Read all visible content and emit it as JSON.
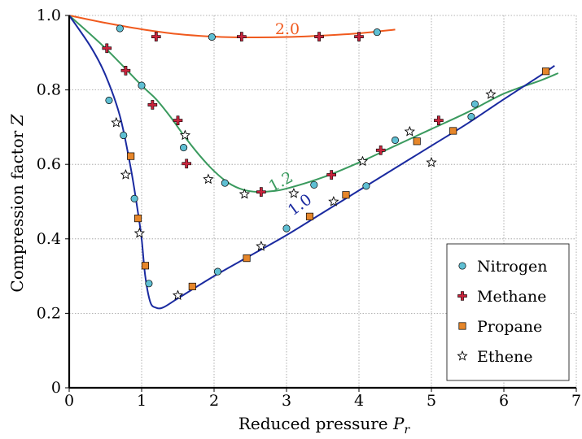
{
  "chart_data": {
    "type": "scatter",
    "xlabel": "Reduced pressure P_r",
    "ylabel": "Compression factor Z",
    "xlim": [
      0,
      7
    ],
    "ylim": [
      0,
      1.0
    ],
    "x_ticks": [
      0,
      1,
      2,
      3,
      4,
      5,
      6,
      7
    ],
    "y_ticks": [
      0,
      0.2,
      0.4,
      0.6,
      0.8,
      1.0
    ],
    "grid": true,
    "legend_position": "bottom-right",
    "curves": [
      {
        "label": "2.0",
        "color": "#f05a1e",
        "points": [
          [
            0,
            1.0
          ],
          [
            0.5,
            0.98
          ],
          [
            1.0,
            0.963
          ],
          [
            1.5,
            0.95
          ],
          [
            2.0,
            0.943
          ],
          [
            2.5,
            0.941
          ],
          [
            3.0,
            0.942
          ],
          [
            3.5,
            0.946
          ],
          [
            4.0,
            0.952
          ],
          [
            4.5,
            0.962
          ]
        ]
      },
      {
        "label": "1.2",
        "color": "#3a9a5e",
        "points": [
          [
            0,
            1.0
          ],
          [
            0.5,
            0.912
          ],
          [
            1.0,
            0.812
          ],
          [
            1.2,
            0.775
          ],
          [
            1.4,
            0.727
          ],
          [
            1.6,
            0.673
          ],
          [
            1.8,
            0.624
          ],
          [
            2.0,
            0.582
          ],
          [
            2.2,
            0.55
          ],
          [
            2.4,
            0.532
          ],
          [
            2.6,
            0.526
          ],
          [
            2.8,
            0.528
          ],
          [
            3.0,
            0.535
          ],
          [
            3.5,
            0.565
          ],
          [
            4.0,
            0.605
          ],
          [
            4.5,
            0.65
          ],
          [
            5.0,
            0.695
          ],
          [
            5.5,
            0.74
          ],
          [
            6.0,
            0.79
          ],
          [
            6.5,
            0.825
          ],
          [
            6.75,
            0.845
          ]
        ]
      },
      {
        "label": "1.0",
        "color": "#1a2aa0",
        "points": [
          [
            0,
            1.0
          ],
          [
            0.3,
            0.915
          ],
          [
            0.5,
            0.84
          ],
          [
            0.7,
            0.73
          ],
          [
            0.85,
            0.59
          ],
          [
            0.95,
            0.47
          ],
          [
            1.0,
            0.4
          ],
          [
            1.05,
            0.3
          ],
          [
            1.12,
            0.23
          ],
          [
            1.2,
            0.215
          ],
          [
            1.3,
            0.216
          ],
          [
            1.5,
            0.24
          ],
          [
            2.0,
            0.3
          ],
          [
            2.5,
            0.355
          ],
          [
            3.0,
            0.41
          ],
          [
            3.5,
            0.47
          ],
          [
            4.0,
            0.53
          ],
          [
            4.5,
            0.59
          ],
          [
            5.0,
            0.65
          ],
          [
            5.5,
            0.71
          ],
          [
            6.0,
            0.775
          ],
          [
            6.5,
            0.838
          ],
          [
            6.7,
            0.865
          ]
        ]
      }
    ],
    "series": [
      {
        "name": "Nitrogen",
        "marker": "circle",
        "color": "#5fbfd3",
        "points": [
          [
            0.7,
            0.965
          ],
          [
            1.97,
            0.942
          ],
          [
            4.25,
            0.955
          ],
          [
            0.55,
            0.772
          ],
          [
            1.0,
            0.812
          ],
          [
            0.75,
            0.678
          ],
          [
            1.58,
            0.645
          ],
          [
            2.15,
            0.55
          ],
          [
            3.38,
            0.545
          ],
          [
            4.5,
            0.665
          ],
          [
            5.6,
            0.762
          ],
          [
            0.9,
            0.508
          ],
          [
            1.1,
            0.28
          ],
          [
            2.05,
            0.312
          ],
          [
            3.0,
            0.428
          ],
          [
            4.1,
            0.542
          ],
          [
            5.55,
            0.728
          ]
        ]
      },
      {
        "name": "Methane",
        "marker": "plus",
        "color": "#c8243c",
        "points": [
          [
            1.2,
            0.943
          ],
          [
            2.38,
            0.943
          ],
          [
            3.45,
            0.943
          ],
          [
            4.0,
            0.943
          ],
          [
            0.52,
            0.912
          ],
          [
            0.78,
            0.852
          ],
          [
            1.15,
            0.76
          ],
          [
            1.5,
            0.718
          ],
          [
            1.62,
            0.602
          ],
          [
            2.65,
            0.526
          ],
          [
            3.62,
            0.572
          ],
          [
            4.3,
            0.638
          ],
          [
            5.1,
            0.718
          ]
        ]
      },
      {
        "name": "Propane",
        "marker": "square",
        "color": "#e6862a",
        "points": [
          [
            0.85,
            0.622
          ],
          [
            0.95,
            0.455
          ],
          [
            1.05,
            0.328
          ],
          [
            1.7,
            0.272
          ],
          [
            2.45,
            0.348
          ],
          [
            3.32,
            0.46
          ],
          [
            3.82,
            0.518
          ],
          [
            4.8,
            0.662
          ],
          [
            5.3,
            0.69
          ],
          [
            6.58,
            0.85
          ]
        ]
      },
      {
        "name": "Ethene",
        "marker": "star",
        "color": "#ffffff",
        "points": [
          [
            0.65,
            0.712
          ],
          [
            0.78,
            0.572
          ],
          [
            0.97,
            0.415
          ],
          [
            1.6,
            0.678
          ],
          [
            1.92,
            0.56
          ],
          [
            2.42,
            0.52
          ],
          [
            3.1,
            0.522
          ],
          [
            4.05,
            0.608
          ],
          [
            4.7,
            0.688
          ],
          [
            1.5,
            0.248
          ],
          [
            2.65,
            0.38
          ],
          [
            3.65,
            0.5
          ],
          [
            5.0,
            0.605
          ],
          [
            5.82,
            0.788
          ]
        ]
      }
    ]
  }
}
